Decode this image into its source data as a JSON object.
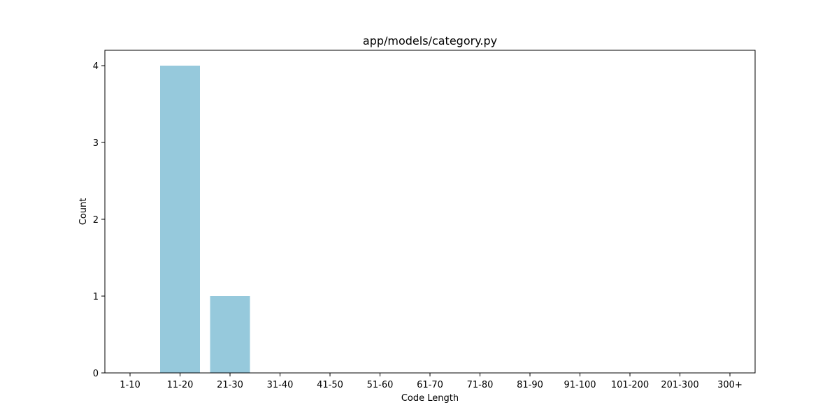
{
  "chart_data": {
    "type": "bar",
    "title": "app/models/category.py",
    "xlabel": "Code Length",
    "ylabel": "Count",
    "categories": [
      "1-10",
      "11-20",
      "21-30",
      "31-40",
      "41-50",
      "51-60",
      "61-70",
      "71-80",
      "81-90",
      "91-100",
      "101-200",
      "201-300",
      "300+"
    ],
    "values": [
      0,
      4,
      1,
      0,
      0,
      0,
      0,
      0,
      0,
      0,
      0,
      0,
      0
    ],
    "ylim": [
      0,
      4.2
    ],
    "yticks": [
      0,
      1,
      2,
      3,
      4
    ],
    "grid": false,
    "colors": {
      "bar": "#96c9dc"
    }
  }
}
